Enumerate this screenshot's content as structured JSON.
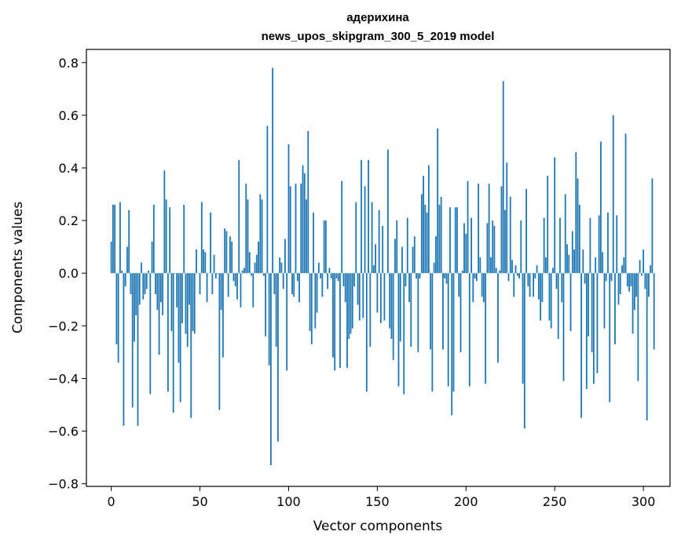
{
  "chart_data": {
    "type": "bar",
    "title": "адерихина",
    "subtitle": "news_upos_skipgram_300_5_2019 model",
    "xlabel": "Vector components",
    "ylabel": "Components values",
    "xlim": [
      -14,
      315
    ],
    "ylim": [
      -0.81,
      0.85
    ],
    "xticks": [
      0,
      50,
      100,
      150,
      200,
      250,
      300
    ],
    "yticks": [
      -0.8,
      -0.6,
      -0.4,
      -0.2,
      0.0,
      0.2,
      0.4,
      0.6,
      0.8
    ],
    "ytick_labels": [
      "−0.8",
      "−0.6",
      "−0.4",
      "−0.2",
      "0.0",
      "0.2",
      "0.4",
      "0.6",
      "0.8"
    ],
    "bar_color": "#1f77b4",
    "grid": false,
    "x_start": 0,
    "values": [
      0.12,
      0.26,
      0.26,
      -0.27,
      -0.34,
      0.27,
      0.01,
      -0.58,
      -0.05,
      0.1,
      0.24,
      -0.08,
      -0.51,
      -0.26,
      -0.16,
      -0.58,
      -0.12,
      0.04,
      -0.1,
      -0.08,
      -0.06,
      0.01,
      -0.46,
      0.12,
      0.26,
      -0.08,
      -0.14,
      -0.31,
      -0.11,
      -0.16,
      0.39,
      0.28,
      -0.45,
      0.25,
      -0.22,
      -0.53,
      0.0,
      -0.13,
      -0.34,
      -0.49,
      -0.19,
      0.26,
      -0.23,
      -0.28,
      -0.12,
      -0.55,
      -0.22,
      -0.23,
      0.09,
      0.0,
      -0.08,
      0.27,
      0.09,
      0.08,
      -0.11,
      0.0,
      0.23,
      -0.08,
      0.07,
      -0.02,
      0.0,
      -0.52,
      -0.14,
      -0.32,
      0.17,
      0.16,
      -0.09,
      0.14,
      0.12,
      -0.03,
      -0.05,
      -0.1,
      0.43,
      -0.13,
      0.01,
      0.02,
      0.34,
      0.28,
      0.08,
      -0.01,
      -0.13,
      0.04,
      0.07,
      0.12,
      0.3,
      0.28,
      -0.01,
      -0.24,
      0.56,
      -0.35,
      -0.73,
      0.78,
      -0.08,
      -0.28,
      -0.64,
      0.06,
      0.04,
      -0.06,
      0.13,
      -0.37,
      0.49,
      0.33,
      -0.08,
      -0.09,
      0.34,
      -0.03,
      -0.11,
      0.34,
      0.41,
      0.38,
      0.28,
      0.54,
      -0.22,
      -0.27,
      0.23,
      -0.21,
      -0.15,
      0.04,
      -0.02,
      -0.09,
      0.2,
      0.2,
      -0.06,
      0.02,
      -0.02,
      -0.32,
      -0.37,
      -0.02,
      -0.03,
      -0.36,
      0.35,
      -0.05,
      -0.11,
      -0.36,
      -0.25,
      -0.23,
      -0.21,
      -0.05,
      0.27,
      -0.12,
      -0.18,
      0.43,
      -0.17,
      0.33,
      -0.45,
      0.43,
      -0.28,
      0.27,
      0.03,
      0.11,
      -0.15,
      0.24,
      -0.19,
      0.18,
      -0.18,
      0.0,
      0.47,
      -0.21,
      -0.25,
      -0.33,
      0.13,
      0.2,
      -0.43,
      -0.26,
      0.1,
      -0.46,
      -0.05,
      0.21,
      -0.11,
      -0.28,
      0.1,
      0.14,
      -0.02,
      -0.3,
      -0.02,
      0.3,
      0.37,
      0.26,
      0.23,
      0.41,
      -0.29,
      -0.45,
      0.04,
      0.14,
      0.55,
      0.26,
      0.29,
      -0.29,
      -0.02,
      -0.04,
      -0.43,
      0.25,
      -0.54,
      -0.45,
      0.25,
      0.25,
      -0.09,
      -0.3,
      0.01,
      0.19,
      0.15,
      0.35,
      -0.43,
      0.21,
      -0.11,
      -0.02,
      -0.03,
      0.34,
      0.06,
      -0.09,
      -0.11,
      -0.42,
      0.19,
      0.34,
      0.06,
      0.2,
      0.18,
      0.02,
      -0.34,
      0.01,
      0.33,
      0.73,
      0.24,
      0.42,
      -0.03,
      0.29,
      0.05,
      -0.09,
      0.03,
      -0.01,
      -0.02,
      0.2,
      -0.42,
      -0.59,
      0.32,
      -0.05,
      -0.09,
      0.0,
      -0.09,
      -0.02,
      0.03,
      -0.1,
      -0.18,
      -0.11,
      0.21,
      0.06,
      0.37,
      -0.18,
      -0.21,
      0.02,
      0.44,
      -0.06,
      -0.25,
      0.21,
      -0.11,
      -0.41,
      0.3,
      0.11,
      0.07,
      -0.22,
      0.16,
      0.09,
      0.46,
      0.36,
      0.26,
      -0.55,
      0.09,
      -0.04,
      -0.44,
      -0.24,
      0.21,
      -0.3,
      -0.42,
      0.06,
      -0.38,
      0.22,
      0.5,
      0.08,
      -0.21,
      -0.03,
      0.23,
      -0.49,
      -0.03,
      0.6,
      -0.27,
      0.22,
      -0.12,
      -0.08,
      0.03,
      0.06,
      0.53,
      -0.05,
      -0.07,
      -0.05,
      -0.23,
      -0.14,
      -0.09,
      -0.41,
      0.05,
      -0.01,
      0.09,
      -0.06,
      -0.56,
      -0.09,
      0.03,
      0.36,
      -0.29
    ]
  }
}
